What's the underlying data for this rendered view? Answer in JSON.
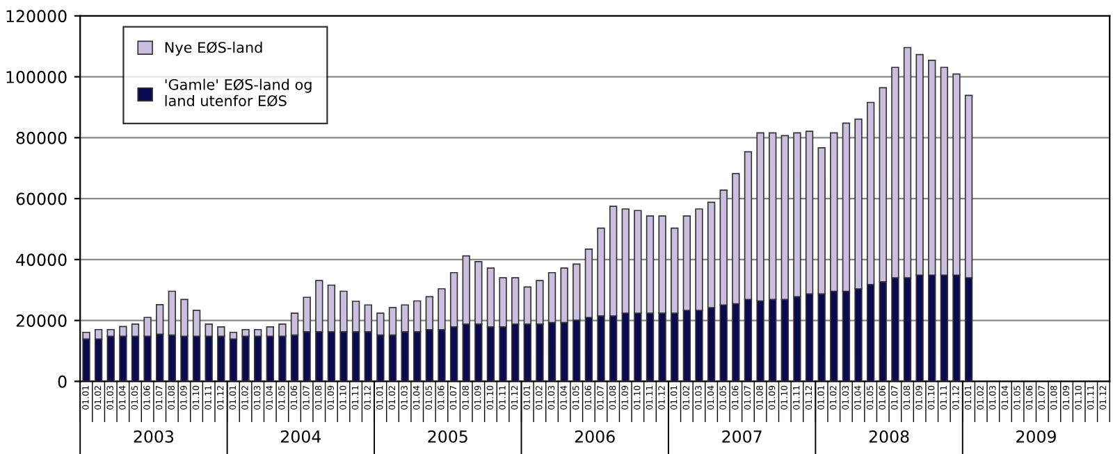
{
  "chart_data": {
    "type": "bar",
    "stacked": true,
    "categories": [
      "01.01",
      "01.02",
      "01.03",
      "01.04",
      "01.05",
      "01.06",
      "01.07",
      "01.08",
      "01.09",
      "01.10",
      "01.11",
      "01.12",
      "01.01",
      "01.02",
      "01.03",
      "01.04",
      "01.05",
      "01.06",
      "01.07",
      "01.08",
      "01.09",
      "01.10",
      "01.11",
      "01.12",
      "01.01",
      "01.02",
      "01.03",
      "01.04",
      "01.05",
      "01.06",
      "01.07",
      "01.08",
      "01.09",
      "01.10",
      "01.11",
      "01.12",
      "01.01",
      "01.02",
      "01.03",
      "01.04",
      "01.05",
      "01.06",
      "01.07",
      "01.08",
      "01.09",
      "01.10",
      "01.11",
      "01.12",
      "01.01",
      "01.02",
      "01.03",
      "01.04",
      "01.05",
      "01.06",
      "01.07",
      "01.08",
      "01.09",
      "01.10",
      "01.11",
      "01.12",
      "01.01",
      "01.02",
      "01.03",
      "01.04",
      "01.05",
      "01.06",
      "01.07",
      "01.08",
      "01.09",
      "01.10",
      "01.11",
      "01.12",
      "01.01",
      "01.02",
      "01.03",
      "01.04",
      "01.05",
      "01.06",
      "01.07",
      "01.08",
      "01.09",
      "01.10",
      "01.11",
      "01.12"
    ],
    "series": [
      {
        "name": "'Gamle' EØS-land og\nland utenfor EØS",
        "color": "#0a0a50",
        "values": [
          13900,
          13900,
          14800,
          14800,
          14800,
          14800,
          15500,
          15200,
          14800,
          14800,
          14800,
          14800,
          13900,
          14800,
          14800,
          14800,
          14800,
          15200,
          16300,
          16300,
          16300,
          16300,
          16300,
          16300,
          15200,
          15200,
          16300,
          16300,
          17000,
          17000,
          17900,
          18800,
          18800,
          17900,
          17900,
          18800,
          18800,
          18800,
          19300,
          19300,
          20100,
          21000,
          21500,
          21500,
          22400,
          22400,
          22400,
          22400,
          22400,
          23300,
          23300,
          24200,
          25100,
          25500,
          26900,
          26400,
          26900,
          26900,
          27800,
          28700,
          28700,
          29600,
          29600,
          30400,
          31800,
          32700,
          34000,
          34000,
          34900,
          34900,
          34900,
          34900,
          34000,
          null,
          null,
          null,
          null,
          null,
          null,
          null,
          null,
          null,
          null,
          null
        ]
      },
      {
        "name": "Nye EØS-land",
        "color": "#cbbfdf",
        "values": [
          2200,
          3100,
          2200,
          3200,
          4000,
          6200,
          9700,
          14400,
          12100,
          8500,
          4000,
          3100,
          2200,
          2200,
          2200,
          3100,
          4000,
          7200,
          11300,
          16800,
          15300,
          13300,
          10000,
          8800,
          7200,
          9000,
          8800,
          10100,
          10800,
          13400,
          17800,
          22400,
          20500,
          19300,
          16100,
          15200,
          12200,
          14300,
          16400,
          17900,
          18400,
          22400,
          28800,
          36000,
          34200,
          33700,
          31900,
          31900,
          27900,
          31000,
          33300,
          34600,
          37700,
          42700,
          48500,
          55200,
          54700,
          53800,
          53800,
          53400,
          48000,
          52000,
          55200,
          55700,
          59800,
          63700,
          69100,
          75600,
          72400,
          70500,
          68200,
          66000,
          59900,
          null,
          null,
          null,
          null,
          null,
          null,
          null,
          null,
          null,
          null,
          null
        ]
      }
    ],
    "ylim": [
      0,
      120000
    ],
    "yticks": [
      0,
      20000,
      40000,
      60000,
      80000,
      100000,
      120000
    ],
    "grid": "y",
    "legend": "top left",
    "annotations": [
      "2003",
      "2004",
      "2005",
      "2006",
      "2007",
      "2008",
      "2009"
    ]
  }
}
